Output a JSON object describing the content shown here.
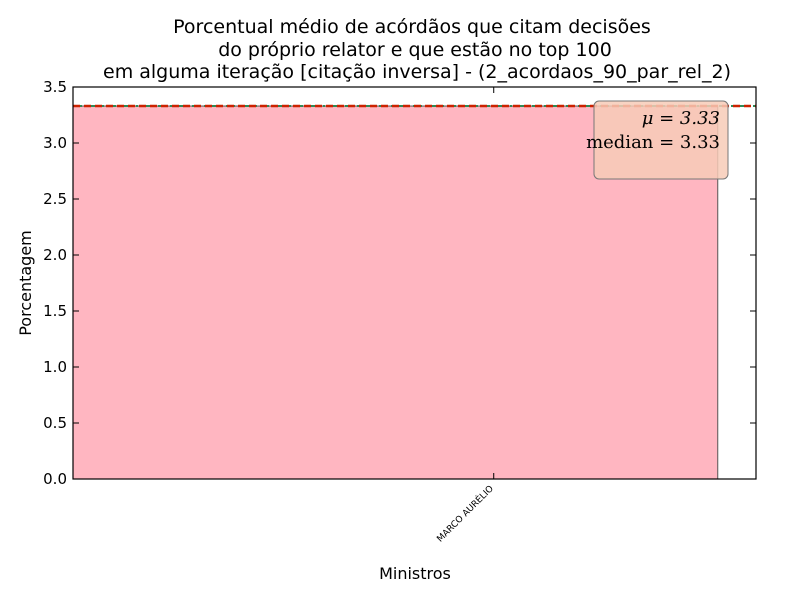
{
  "chart_data": {
    "type": "bar",
    "title_lines": [
      "Porcentual médio de acórdãos que citam decisões",
      "do próprio relator e que estão no top 100",
      "em alguma iteração [citação inversa] - (2_acordaos_90_par_rel_2)"
    ],
    "xlabel": "Ministros",
    "ylabel": "Porcentagem",
    "categories": [
      "MARCO AURÉLIO"
    ],
    "values": [
      3.33
    ],
    "ylim": [
      0,
      3.5
    ],
    "yticks": [
      "0.0",
      "0.5",
      "1.0",
      "1.5",
      "2.0",
      "2.5",
      "3.0",
      "3.5"
    ],
    "mean": 3.33,
    "median": 3.33,
    "stats_box": {
      "mean_text": "μ = 3.33",
      "median_text": "median = 3.33",
      "placement": "top-right"
    },
    "grid": false,
    "colors": {
      "bar": "#ffb6c1",
      "mean_line": "#2e8b57",
      "median_line": "#cc2200",
      "box_fill": "#f7cbb7"
    }
  }
}
